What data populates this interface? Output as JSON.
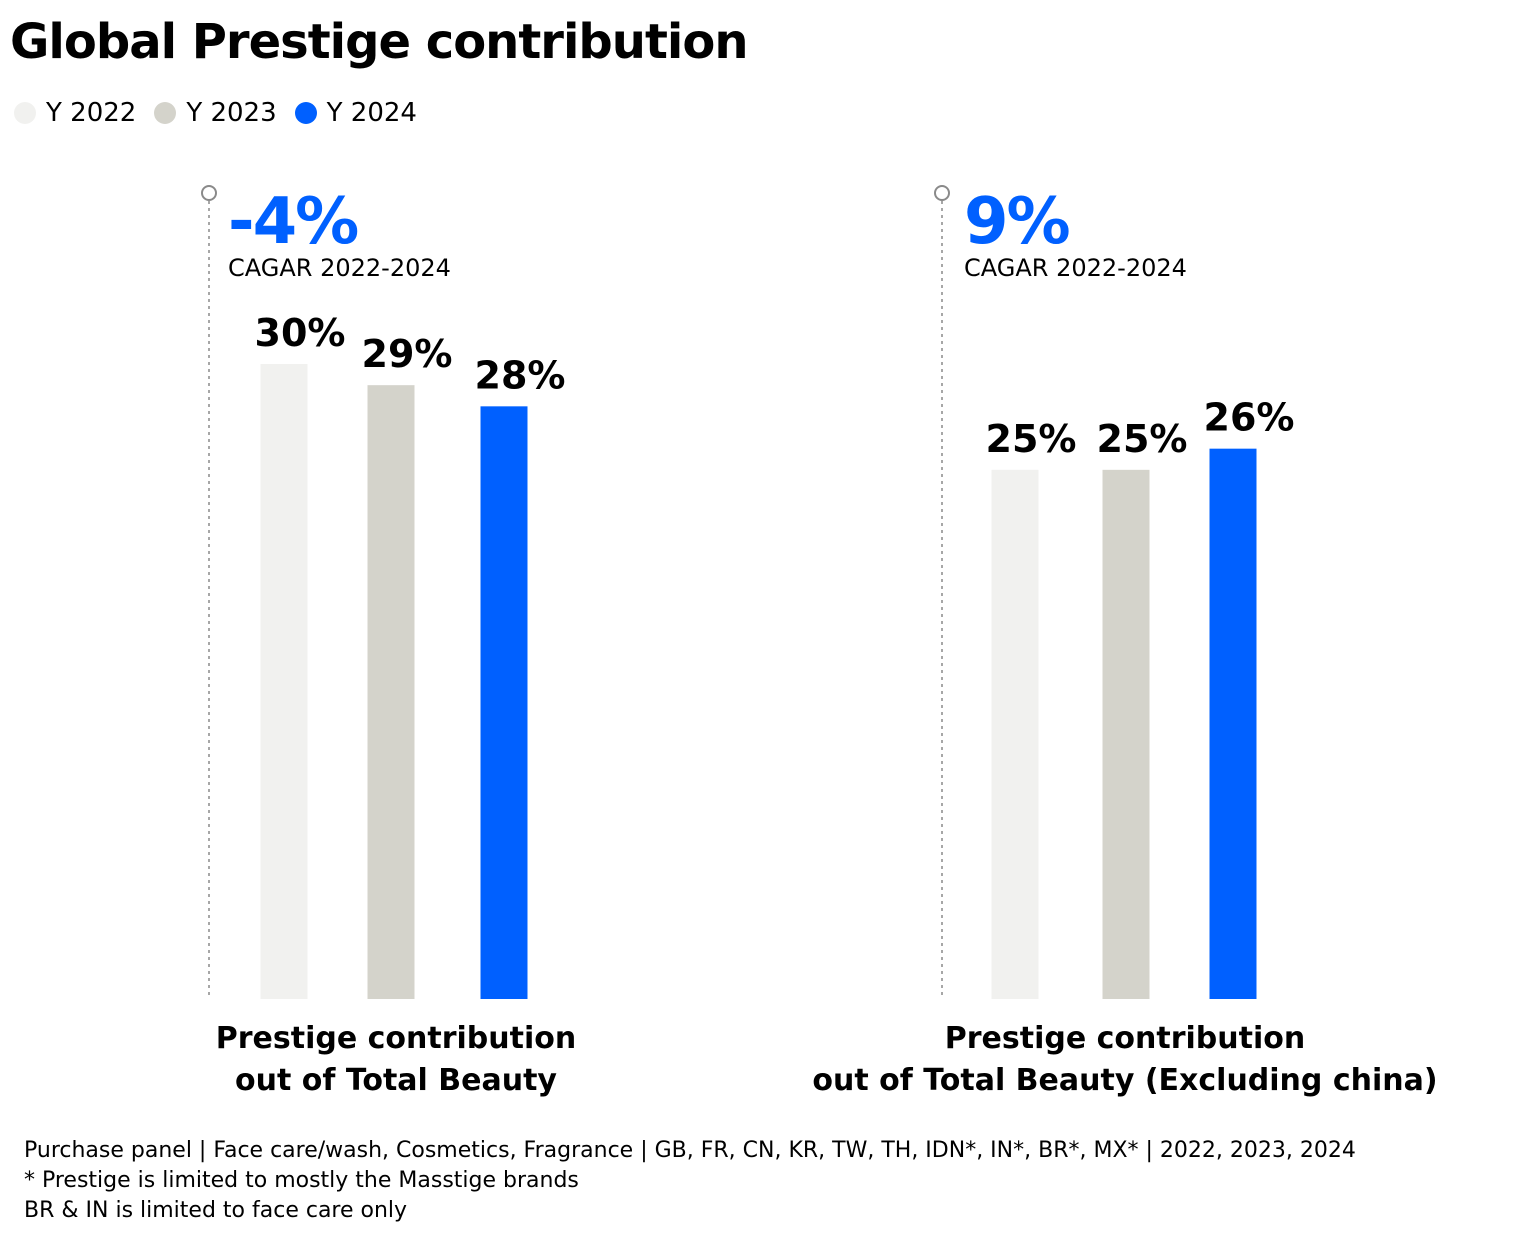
{
  "title": "Global Prestige contribution",
  "legend": [
    {
      "label": "Y 2022",
      "color": "#f1f1ef"
    },
    {
      "label": "Y 2023",
      "color": "#d4d3cb"
    },
    {
      "label": "Y 2024",
      "color": "#0060ff"
    }
  ],
  "chart_data": [
    {
      "type": "bar",
      "categories": [
        "Y 2022",
        "Y 2023",
        "Y 2024"
      ],
      "values": [
        30,
        29,
        28
      ],
      "value_labels": [
        "30%",
        "29%",
        "28%"
      ],
      "cagr_value": "-4%",
      "cagr_label": "CAGAR 2022-2024",
      "xlabel_line1": "Prestige contribution",
      "xlabel_line2": "out of Total Beauty",
      "colors": [
        "#f1f1ef",
        "#d4d3cb",
        "#0060ff"
      ]
    },
    {
      "type": "bar",
      "categories": [
        "Y 2022",
        "Y 2023",
        "Y 2024"
      ],
      "values": [
        25,
        25,
        26
      ],
      "value_labels": [
        "25%",
        "25%",
        "26%"
      ],
      "cagr_value": "9%",
      "cagr_label": "CAGAR 2022-2024",
      "xlabel_line1": "Prestige contribution",
      "xlabel_line2": "out of Total Beauty (Excluding china)",
      "colors": [
        "#f1f1ef",
        "#d4d3cb",
        "#0060ff"
      ]
    }
  ],
  "footnotes": [
    "Purchase panel | Face care/wash, Cosmetics, Fragrance | GB, FR, CN, KR, TW, TH, IDN*, IN*, BR*, MX* | 2022, 2023, 2024",
    "* Prestige is limited to mostly the Masstige brands",
    "BR & IN is limited to face care only"
  ]
}
